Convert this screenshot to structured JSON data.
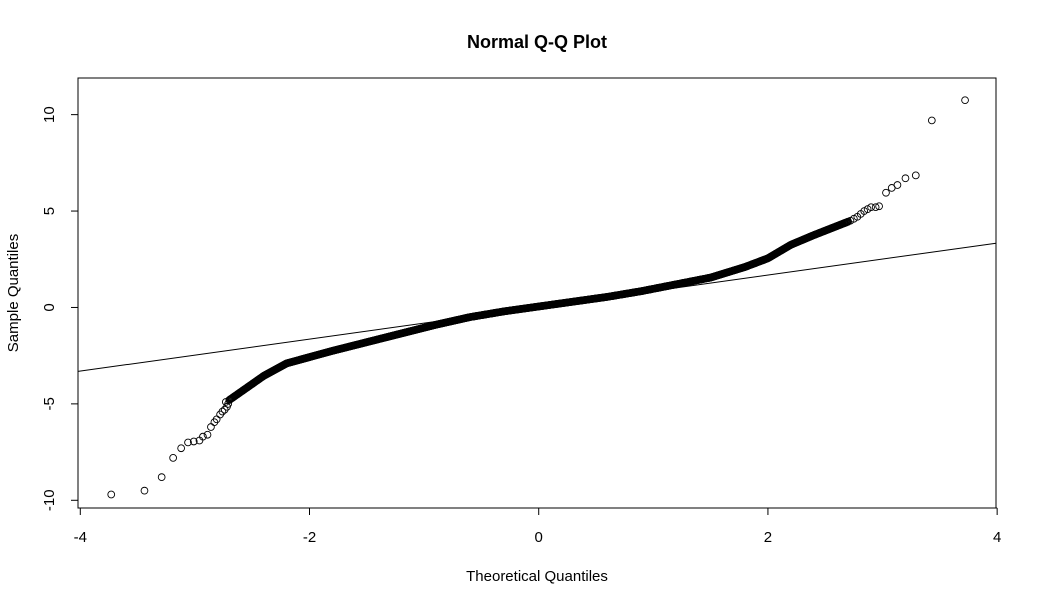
{
  "chart_data": {
    "type": "scatter",
    "title": "Normal Q-Q Plot",
    "xlabel": "Theoretical Quantiles",
    "ylabel": "Sample Quantiles",
    "xlim": [
      -4.02,
      3.99
    ],
    "ylim": [
      -10.4,
      11.9
    ],
    "xticks": [
      -4,
      -2,
      0,
      2,
      4
    ],
    "xtick_labels": [
      "-4",
      "-2",
      "0",
      "2",
      "4"
    ],
    "yticks": [
      -10,
      -5,
      0,
      5,
      10
    ],
    "ytick_labels": [
      "-10",
      "-5",
      "0",
      "5",
      "10"
    ],
    "grid": false,
    "reference_line": {
      "intercept": 0.02,
      "slope": 0.83
    },
    "curve_knots": [
      [
        -2.7,
        -4.8
      ],
      [
        -2.4,
        -3.55
      ],
      [
        -2.2,
        -2.9
      ],
      [
        -1.8,
        -2.25
      ],
      [
        -1.5,
        -1.8
      ],
      [
        -1.2,
        -1.35
      ],
      [
        -0.9,
        -0.9
      ],
      [
        -0.6,
        -0.5
      ],
      [
        -0.3,
        -0.2
      ],
      [
        0,
        0.05
      ],
      [
        0.3,
        0.3
      ],
      [
        0.6,
        0.55
      ],
      [
        0.9,
        0.85
      ],
      [
        1.2,
        1.2
      ],
      [
        1.5,
        1.55
      ],
      [
        1.8,
        2.1
      ],
      [
        2.0,
        2.55
      ],
      [
        2.2,
        3.25
      ],
      [
        2.4,
        3.75
      ],
      [
        2.7,
        4.45
      ]
    ],
    "tail_points": [
      [
        -3.73,
        -9.7
      ],
      [
        -3.44,
        -9.5
      ],
      [
        -3.29,
        -8.8
      ],
      [
        -3.19,
        -7.8
      ],
      [
        -3.12,
        -7.3
      ],
      [
        -3.06,
        -7.0
      ],
      [
        -3.01,
        -6.95
      ],
      [
        -2.96,
        -6.9
      ],
      [
        -2.93,
        -6.7
      ],
      [
        -2.89,
        -6.6
      ],
      [
        -2.86,
        -6.2
      ],
      [
        -2.83,
        -5.95
      ],
      [
        -2.81,
        -5.8
      ],
      [
        -2.78,
        -5.55
      ],
      [
        -2.76,
        -5.4
      ],
      [
        -2.74,
        -5.3
      ],
      [
        -2.72,
        -5.15
      ],
      [
        -2.71,
        -5.0
      ],
      [
        -2.73,
        -4.9
      ],
      [
        2.72,
        4.5
      ],
      [
        2.75,
        4.6
      ],
      [
        2.78,
        4.7
      ],
      [
        2.81,
        4.85
      ],
      [
        2.84,
        5.0
      ],
      [
        2.87,
        5.1
      ],
      [
        2.9,
        5.2
      ],
      [
        2.94,
        5.2
      ],
      [
        2.97,
        5.25
      ],
      [
        3.03,
        5.95
      ],
      [
        3.08,
        6.2
      ],
      [
        3.13,
        6.35
      ],
      [
        3.2,
        6.7
      ],
      [
        3.29,
        6.85
      ],
      [
        3.43,
        9.7
      ],
      [
        3.72,
        10.75
      ]
    ],
    "n_body_points": 900
  }
}
